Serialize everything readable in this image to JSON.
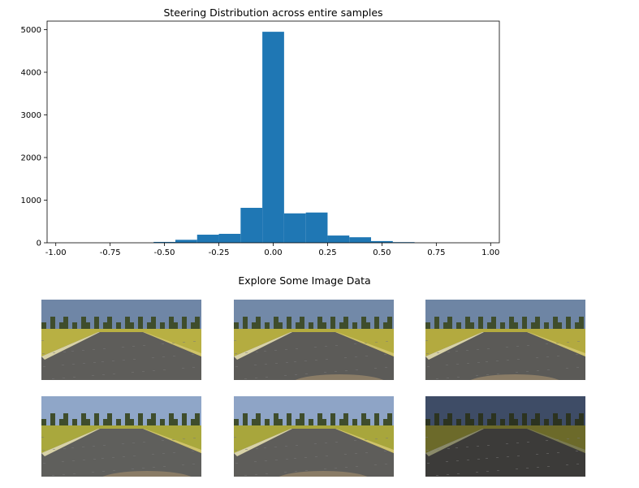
{
  "chart_data": {
    "type": "bar",
    "title": "Steering Distribution across entire samples",
    "xlabel": "",
    "ylabel": "",
    "xlim": [
      -1.04,
      1.04
    ],
    "ylim": [
      0,
      5200
    ],
    "xticks": [
      "-1.00",
      "-0.75",
      "-0.50",
      "-0.25",
      "0.00",
      "0.25",
      "0.50",
      "0.75",
      "1.00"
    ],
    "yticks": [
      "0",
      "1000",
      "2000",
      "3000",
      "4000",
      "5000"
    ],
    "grid": false,
    "color": "#1f77b4",
    "bins": [
      {
        "x0": -0.55,
        "x1": -0.45,
        "count": 20
      },
      {
        "x0": -0.45,
        "x1": -0.35,
        "count": 70
      },
      {
        "x0": -0.35,
        "x1": -0.25,
        "count": 190
      },
      {
        "x0": -0.25,
        "x1": -0.15,
        "count": 210
      },
      {
        "x0": -0.15,
        "x1": -0.05,
        "count": 820
      },
      {
        "x0": -0.05,
        "x1": 0.05,
        "count": 4950
      },
      {
        "x0": 0.05,
        "x1": 0.15,
        "count": 690
      },
      {
        "x0": 0.15,
        "x1": 0.25,
        "count": 710
      },
      {
        "x0": 0.25,
        "x1": 0.35,
        "count": 170
      },
      {
        "x0": 0.35,
        "x1": 0.45,
        "count": 130
      },
      {
        "x0": 0.45,
        "x1": 0.55,
        "count": 40
      },
      {
        "x0": 0.55,
        "x1": 0.65,
        "count": 15
      }
    ]
  },
  "gallery": {
    "title": "Explore Some Image Data",
    "images": [
      {
        "sky": "#6f86a6",
        "grass": "#b8b043",
        "road": "#5e5d5a",
        "hood": false,
        "dim": false
      },
      {
        "sky": "#7289a8",
        "grass": "#b4ac40",
        "road": "#5c5b58",
        "hood": true,
        "dim": false
      },
      {
        "sky": "#6e85a4",
        "grass": "#b3aa3f",
        "road": "#5b5a57",
        "hood": true,
        "dim": false
      },
      {
        "sky": "#8fa6c8",
        "grass": "#a9a83d",
        "road": "#5f5f5c",
        "hood": true,
        "dim": false
      },
      {
        "sky": "#8ea4c6",
        "grass": "#a8a63c",
        "road": "#5e5d5a",
        "hood": true,
        "dim": false
      },
      {
        "sky": "#3e4c66",
        "grass": "#6c6a2a",
        "road": "#3c3b39",
        "hood": false,
        "dim": true
      }
    ]
  }
}
